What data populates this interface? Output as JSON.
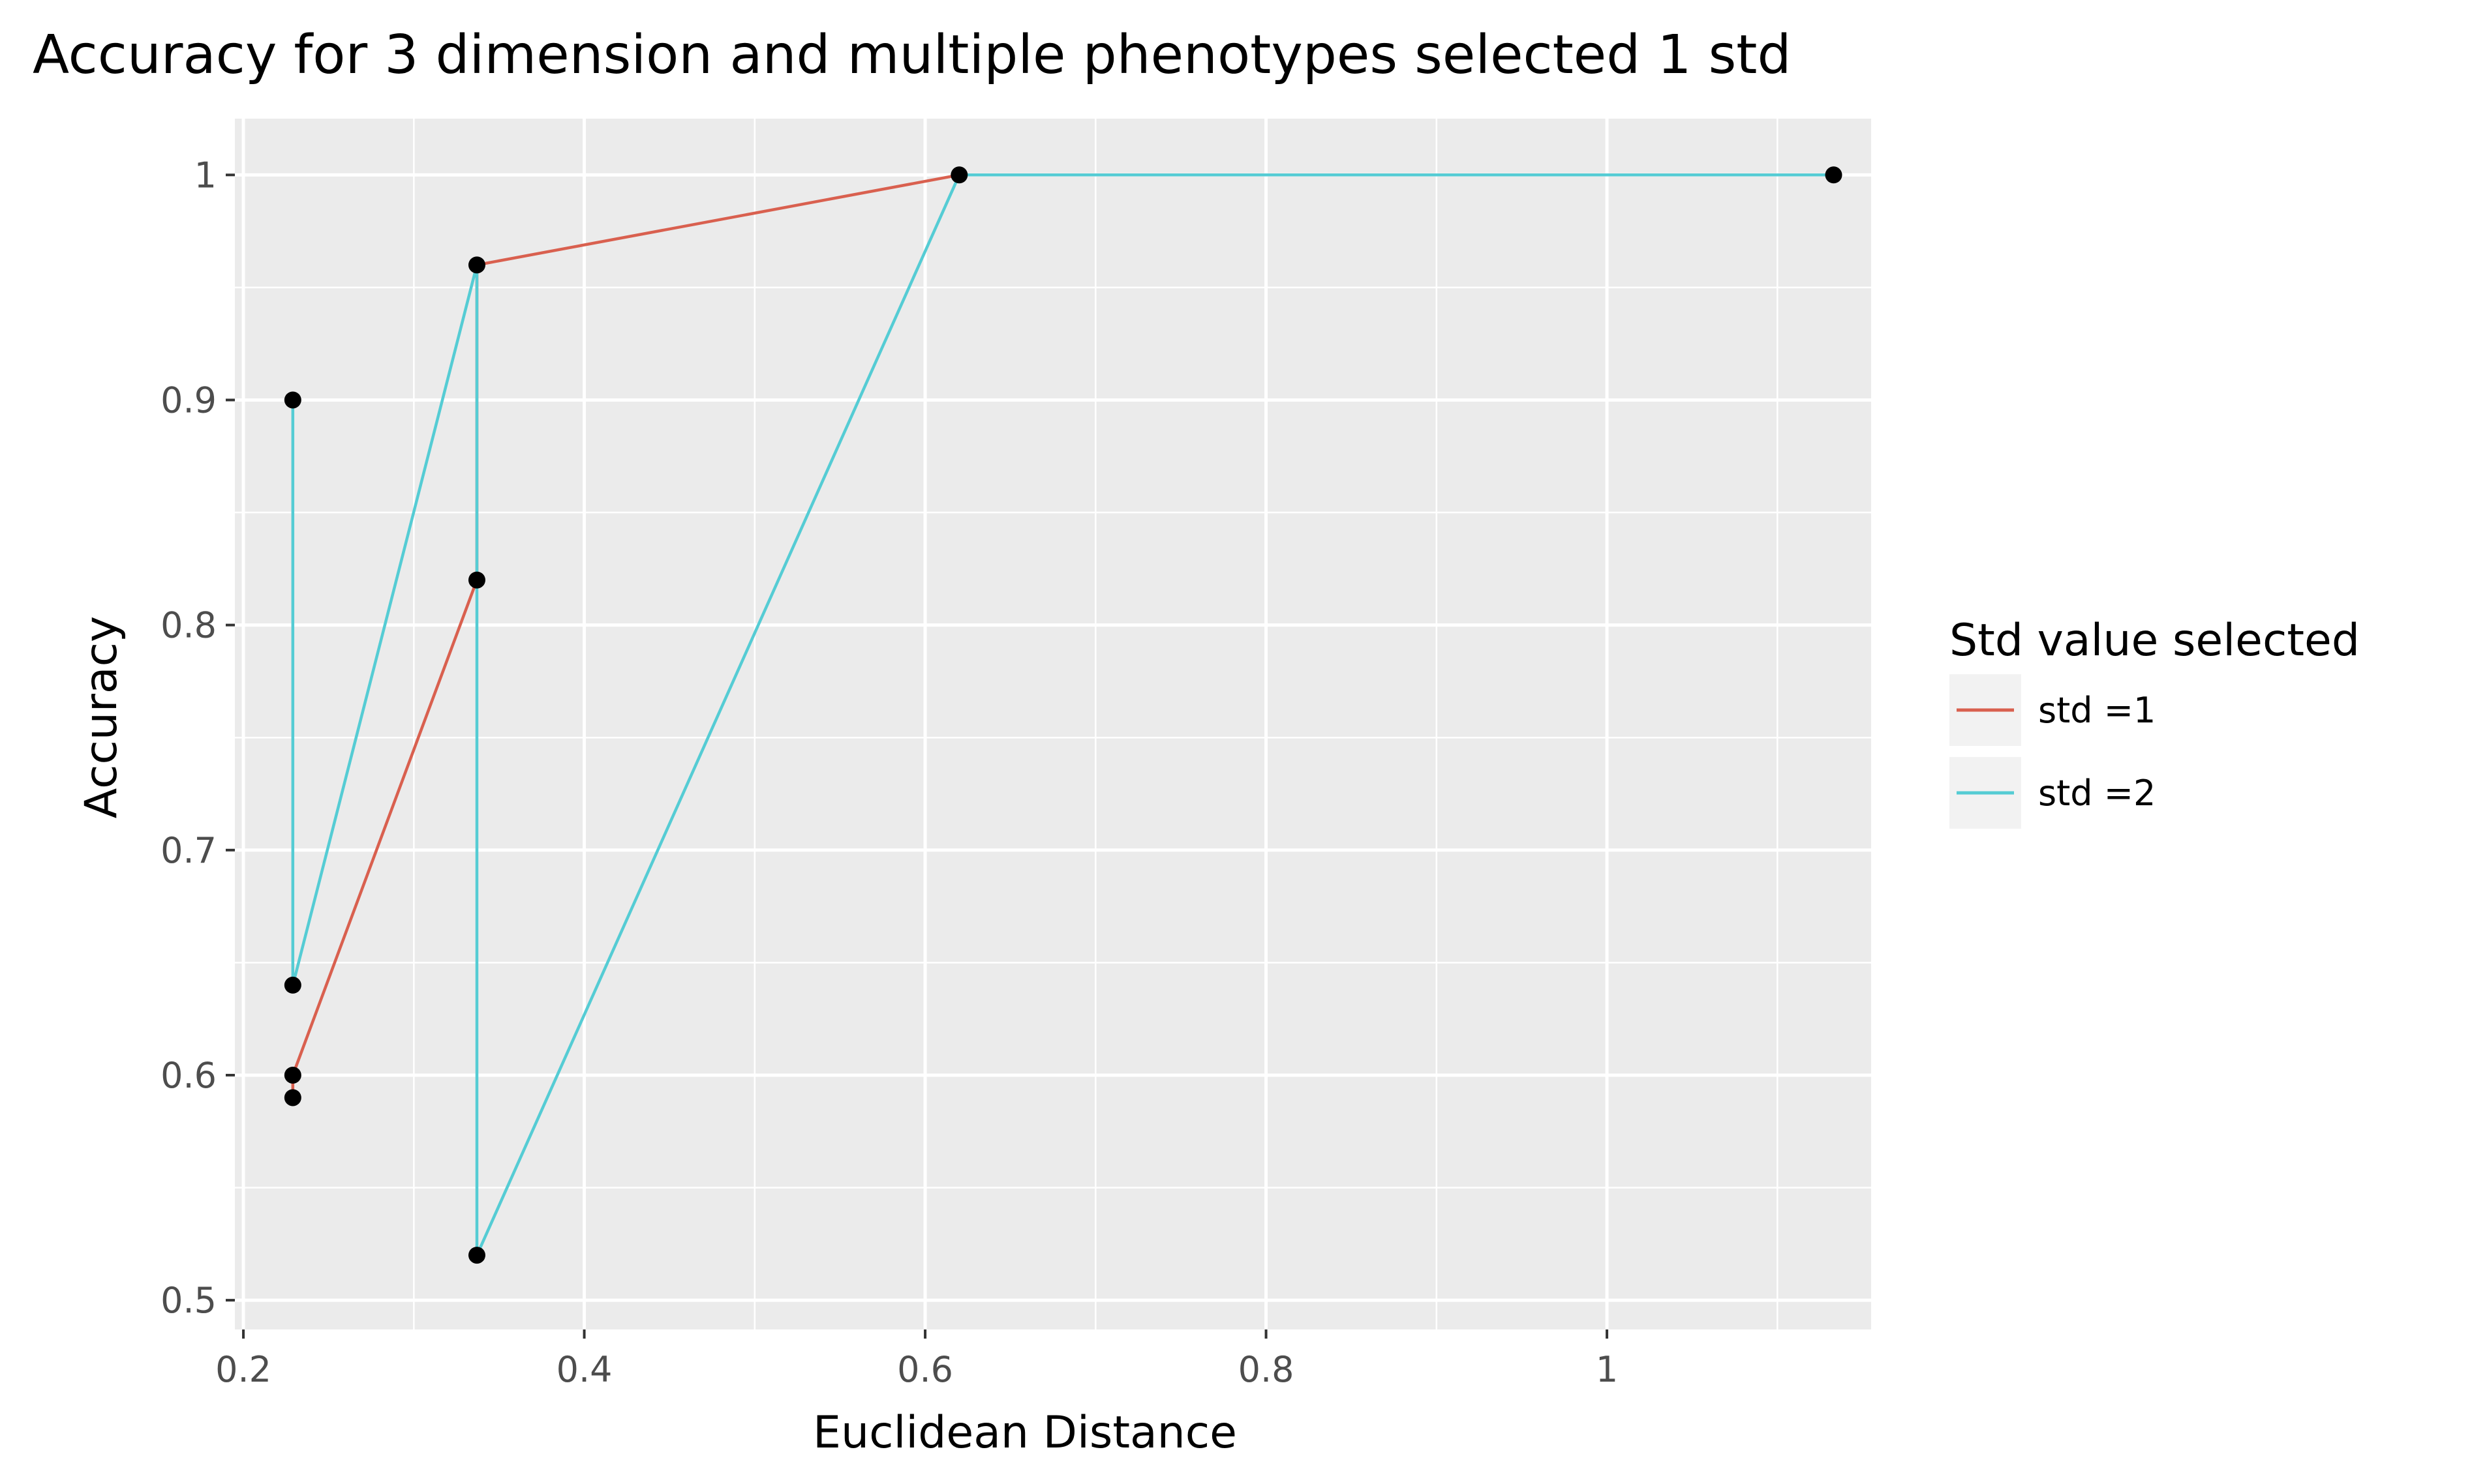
{
  "chart_data": {
    "type": "line",
    "title": "Accuracy for 3 dimension and multiple phenotypes selected 1 std",
    "xlabel": "Euclidean Distance",
    "ylabel": "Accuracy",
    "xlim": [
      0.195,
      1.155
    ],
    "ylim": [
      0.487,
      1.025
    ],
    "xticks": [
      0.2,
      0.4,
      0.6,
      0.8,
      1.0
    ],
    "xtick_labels": [
      "0.2",
      "0.4",
      "0.6",
      "0.8",
      "1"
    ],
    "yticks": [
      0.5,
      0.6,
      0.7,
      0.8,
      0.9,
      1.0
    ],
    "ytick_labels": [
      "0.5",
      "0.6",
      "0.7",
      "0.8",
      "0.9",
      "1"
    ],
    "grid": true,
    "legend": {
      "title": "Std value selected",
      "position": "right"
    },
    "series": [
      {
        "name": "std =1",
        "color": "#d9604f",
        "x": [
          0.229,
          0.229,
          0.337,
          0.337,
          0.62,
          0.62
        ],
        "y": [
          0.59,
          0.6,
          0.82,
          0.96,
          1.0,
          1.0
        ]
      },
      {
        "name": "std =2",
        "color": "#55ccd4",
        "x": [
          0.229,
          0.229,
          0.337,
          0.337,
          0.62,
          1.133
        ],
        "y": [
          0.9,
          0.64,
          0.96,
          0.52,
          1.0,
          1.0
        ]
      }
    ],
    "points": {
      "color": "#000000",
      "x": [
        0.229,
        0.229,
        0.229,
        0.229,
        0.337,
        0.337,
        0.337,
        0.62,
        1.133
      ],
      "y": [
        0.59,
        0.6,
        0.64,
        0.9,
        0.52,
        0.82,
        0.96,
        1.0,
        1.0
      ]
    }
  }
}
